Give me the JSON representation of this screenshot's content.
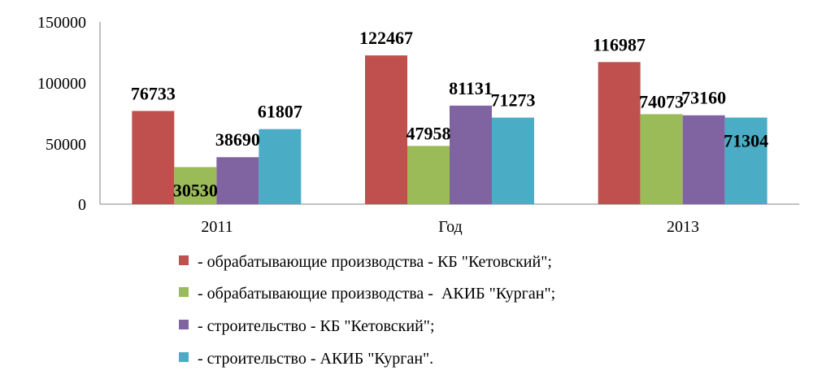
{
  "chart_data": {
    "type": "bar",
    "categories": [
      "2011",
      "Год",
      "2013"
    ],
    "series": [
      {
        "name": " - обрабатывающие производства - КБ \"Кетовский\";",
        "color": "#C0504D",
        "values": [
          76733,
          122467,
          116987
        ]
      },
      {
        "name": " - обрабатывающие производства -  АКИБ \"Курган\";",
        "color": "#9BBB59",
        "values": [
          30530,
          47958,
          74073
        ]
      },
      {
        "name": " - строительство - КБ \"Кетовский\";",
        "color": "#8064A2",
        "values": [
          38690,
          81131,
          73160
        ]
      },
      {
        "name": " - строительство - АКИБ \"Курган\".",
        "color": "#4BACC6",
        "values": [
          61807,
          71273,
          71304
        ]
      }
    ],
    "yticks": [
      "0",
      "50000",
      "100000",
      "150000"
    ],
    "ylim": [
      0,
      150000
    ],
    "grid": false,
    "legend_position": "bottom",
    "title": "",
    "xlabel": "",
    "ylabel": ""
  }
}
